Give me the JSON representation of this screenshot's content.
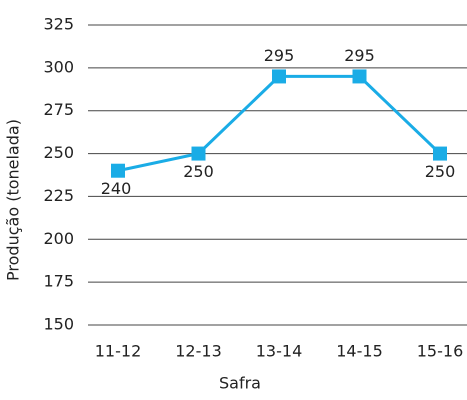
{
  "chart_data": {
    "type": "line",
    "x_label": "Safra",
    "y_label": "Produção (tonelada)",
    "categories": [
      "11-12",
      "12-13",
      "13-14",
      "14-15",
      "15-16"
    ],
    "values": [
      240,
      250,
      295,
      295,
      250
    ],
    "color": "#1aace6",
    "ylim": [
      150,
      325
    ],
    "yticks": [
      150,
      175,
      200,
      225,
      250,
      275,
      300,
      325
    ],
    "grid": true
  }
}
